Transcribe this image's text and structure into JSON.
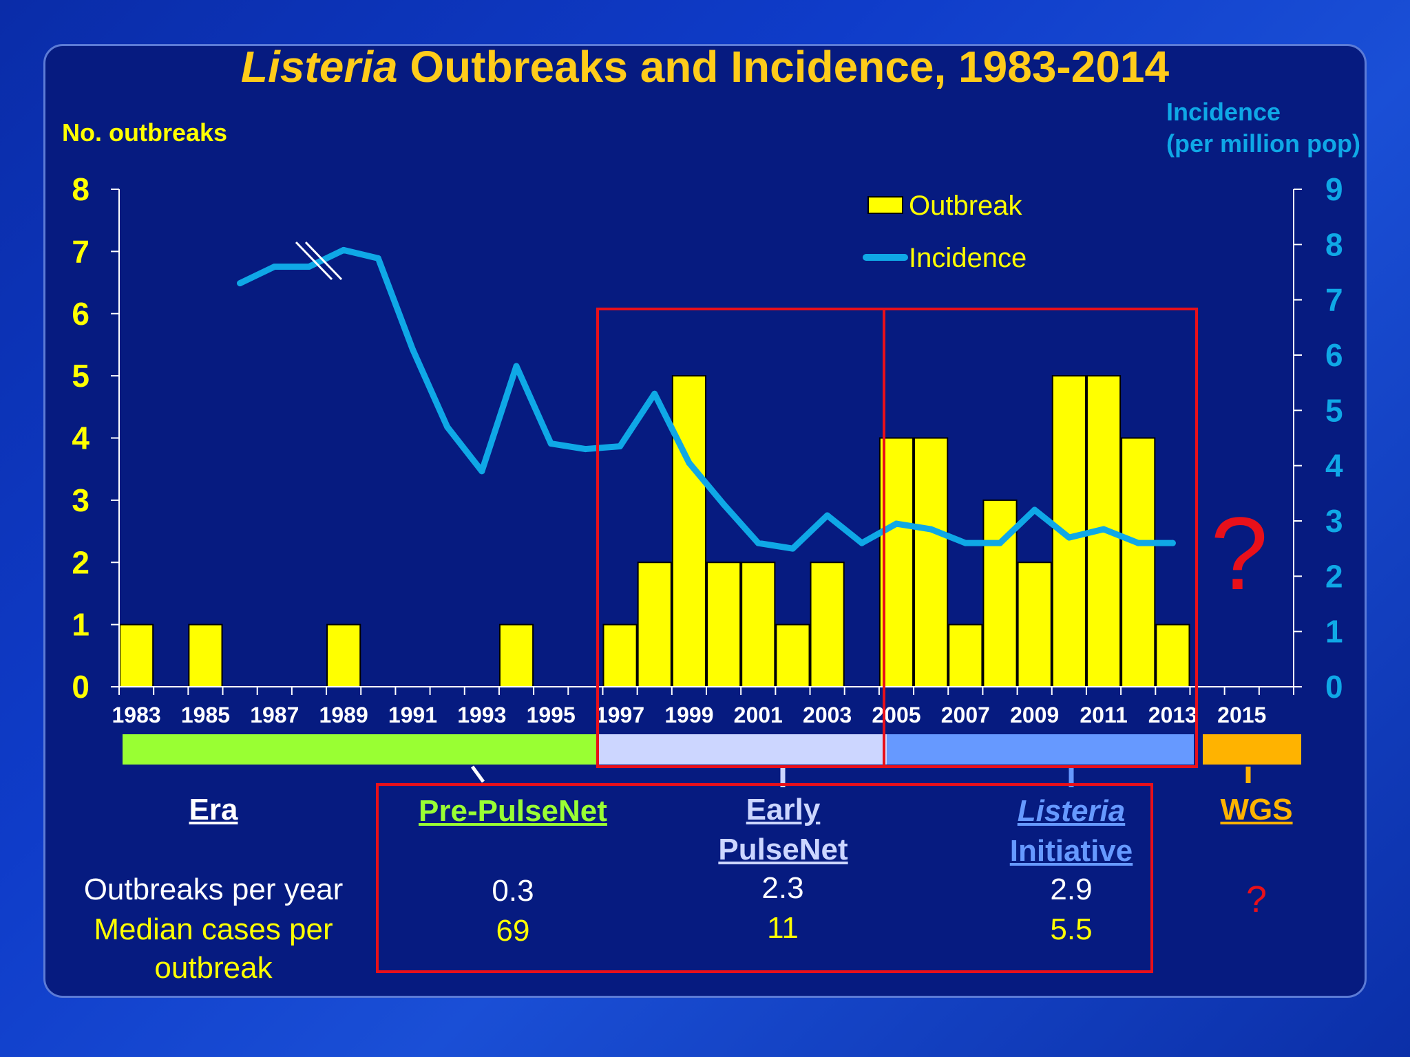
{
  "title": {
    "italic": "Listeria",
    "rest": " Outbreaks and Incidence, 1983-2014"
  },
  "left_axis_label": "No. outbreaks",
  "right_axis_label_line1": "Incidence",
  "right_axis_label_line2": "(per million pop)",
  "legend": {
    "bar": "Outbreak",
    "line": "Incidence"
  },
  "colors": {
    "bar": "#ffff00",
    "line": "#0fa8e6",
    "highlight": "#e8101a",
    "title": "#ffcc1a",
    "pre_pulsenet": "#99ff33",
    "early_pulsenet": "#ccd6ff",
    "listeria_initiative": "#6699ff",
    "wgs": "#ffb300"
  },
  "chart_data": {
    "type": "bar",
    "title": "Listeria Outbreaks and Incidence, 1983-2014",
    "xlabel": "",
    "ylabel": "No. outbreaks",
    "y2label": "Incidence (per million pop)",
    "ylim": [
      0,
      8
    ],
    "y2lim": [
      0,
      9
    ],
    "yticks": [
      "0",
      "1",
      "2",
      "3",
      "4",
      "5",
      "6",
      "7",
      "8"
    ],
    "y2ticks": [
      "0",
      "1",
      "2",
      "3",
      "4",
      "5",
      "6",
      "7",
      "8",
      "9"
    ],
    "xticks": [
      "1983",
      "1985",
      "1987",
      "1989",
      "1991",
      "1993",
      "1995",
      "1997",
      "1999",
      "2001",
      "2003",
      "2005",
      "2007",
      "2009",
      "2011",
      "2013",
      "2015"
    ],
    "series": [
      {
        "name": "Outbreak",
        "axis": "left",
        "x": [
          1983,
          1984,
          1985,
          1986,
          1987,
          1988,
          1989,
          1990,
          1991,
          1992,
          1993,
          1994,
          1995,
          1996,
          1997,
          1998,
          1999,
          2000,
          2001,
          2002,
          2003,
          2004,
          2005,
          2006,
          2007,
          2008,
          2009,
          2010,
          2011,
          2012,
          2013
        ],
        "values": [
          1,
          0,
          1,
          0,
          0,
          0,
          1,
          0,
          0,
          0,
          0,
          1,
          0,
          0,
          1,
          2,
          5,
          2,
          2,
          1,
          2,
          0,
          4,
          4,
          1,
          3,
          2,
          5,
          5,
          4,
          1
        ]
      },
      {
        "name": "Incidence",
        "axis": "right",
        "x": [
          1986,
          1987,
          1988,
          1989,
          1990,
          1991,
          1992,
          1993,
          1994,
          1995,
          1996,
          1997,
          1998,
          1999,
          2000,
          2001,
          2002,
          2003,
          2004,
          2005,
          2006,
          2007,
          2008,
          2009,
          2010,
          2011,
          2012,
          2013
        ],
        "values": [
          7.3,
          7.6,
          7.6,
          7.9,
          7.75,
          6.1,
          4.7,
          3.9,
          5.8,
          4.4,
          4.3,
          4.35,
          5.3,
          4.05,
          3.3,
          2.6,
          2.5,
          3.1,
          2.6,
          2.95,
          2.85,
          2.6,
          2.6,
          3.2,
          2.7,
          2.85,
          2.6,
          2.6
        ]
      }
    ],
    "annotations": [
      "?"
    ]
  },
  "question_mark": "?",
  "eras": {
    "era_label": "Era",
    "pre_pulsenet": "Pre-PulseNet",
    "early_line1": "Early",
    "early_line2": "PulseNet",
    "li_line1": "Listeria",
    "li_line2": "Initiative",
    "wgs": "WGS"
  },
  "stats": {
    "outbreaks_per_year_label": "Outbreaks per year",
    "median_cases_label_line1": "Median cases per",
    "median_cases_label_line2": "outbreak",
    "pre_outbreaks": "0.3",
    "pre_median": "69",
    "early_outbreaks": "2.3",
    "early_median": "11",
    "li_outbreaks": "2.9",
    "li_median": "5.5",
    "wgs_value": "?"
  }
}
